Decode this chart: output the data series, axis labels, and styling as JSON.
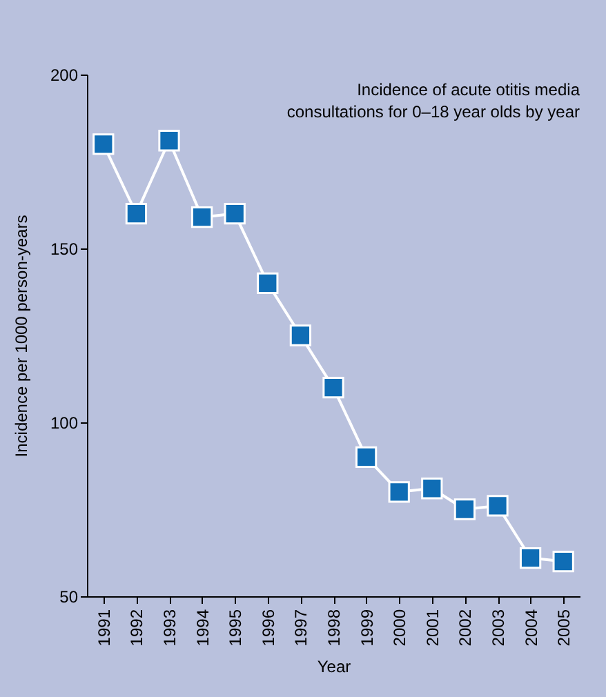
{
  "chart_data": {
    "type": "line",
    "title": "Incidence of acute otitis media consultations for 0–18 year olds by year",
    "xlabel": "Year",
    "ylabel": "Incidence per 1000 person-years",
    "categories": [
      "1991",
      "1992",
      "1993",
      "1994",
      "1995",
      "1996",
      "1997",
      "1998",
      "1999",
      "2000",
      "2001",
      "2002",
      "2003",
      "2004",
      "2005"
    ],
    "series": [
      {
        "color": "#0f6db5",
        "values": [
          180,
          160,
          181,
          159,
          160,
          140,
          125,
          110,
          90,
          80,
          81,
          75,
          76,
          61,
          60
        ]
      }
    ],
    "ylim": [
      50,
      200
    ],
    "yticks": [
      50,
      100,
      150,
      200
    ],
    "grid": false,
    "legend": false,
    "marker": "square",
    "line_style": "solid"
  }
}
